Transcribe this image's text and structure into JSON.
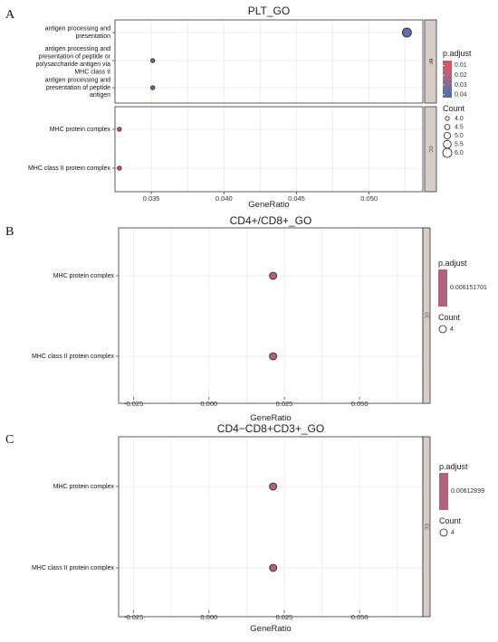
{
  "chart_data": [
    {
      "panel_letter": "A",
      "type": "scatter",
      "title": "PLT_GO",
      "xlabel": "GeneRatio",
      "xlim": [
        0.0325,
        0.0537
      ],
      "x_ticks": [
        0.035,
        0.04,
        0.045,
        0.05
      ],
      "x_tick_labels": [
        "0.035",
        "0.040",
        "0.045",
        "0.050"
      ],
      "grid": true,
      "legend_position": "right",
      "color_legend": {
        "title": "p.adjust",
        "min": 0.005,
        "max": 0.043,
        "ticks": [
          0.01,
          0.02,
          0.03,
          0.04
        ],
        "tick_labels": [
          "0.01",
          "0.02",
          "0.03",
          "0.04"
        ]
      },
      "size_legend": {
        "title": "Count",
        "values": [
          4.0,
          4.5,
          5.0,
          5.5,
          6.0
        ],
        "labels": [
          "4.0",
          "4.5",
          "5.0",
          "5.5",
          "6.0"
        ]
      },
      "facets": [
        {
          "strip": "BP",
          "categories": [
            [
              "antigen processing and",
              "presentation"
            ],
            [
              "antigen processing and",
              "presentation of peptide or",
              "polysaccharide antigen via",
              "MHC class II"
            ],
            [
              "antigen processing and",
              "presentation of peptide",
              "antigen"
            ]
          ],
          "points": [
            {
              "x": 0.0526,
              "count": 6,
              "p_adjust": 0.04
            },
            {
              "x": 0.0351,
              "count": 4,
              "p_adjust": 0.04
            },
            {
              "x": 0.0351,
              "count": 4,
              "p_adjust": 0.04
            }
          ]
        },
        {
          "strip": "CC",
          "categories": [
            [
              "MHC protein complex"
            ],
            [
              "MHC class II protein complex"
            ]
          ],
          "points": [
            {
              "x": 0.0328,
              "count": 4,
              "p_adjust": 0.008
            },
            {
              "x": 0.0328,
              "count": 4,
              "p_adjust": 0.008
            }
          ]
        }
      ]
    },
    {
      "panel_letter": "B",
      "type": "scatter",
      "title": "CD4+/CD8+_GO",
      "xlabel": "GeneRatio",
      "xlim": [
        -0.03,
        0.071
      ],
      "x_ticks": [
        -0.025,
        0.0,
        0.025,
        0.05
      ],
      "x_tick_labels": [
        "-0.025",
        "0.000",
        "0.025",
        "0.050"
      ],
      "grid": true,
      "legend_position": "right",
      "color_legend": {
        "title": "p.adjust",
        "label": "0.006151701",
        "color": "#b0647c"
      },
      "size_legend": {
        "title": "Count",
        "label": "4"
      },
      "facets": [
        {
          "strip": "CC",
          "categories": [
            [
              "MHC protein complex"
            ],
            [
              "MHC class II protein complex"
            ]
          ],
          "points": [
            {
              "x": 0.0213,
              "count": 4,
              "p_adjust": 0.006151701
            },
            {
              "x": 0.0213,
              "count": 4,
              "p_adjust": 0.006151701
            }
          ]
        }
      ]
    },
    {
      "panel_letter": "C",
      "type": "scatter",
      "title": "CD4−CD8+CD3+_GO",
      "xlabel": "GeneRatio",
      "xlim": [
        -0.03,
        0.071
      ],
      "x_ticks": [
        -0.025,
        0.0,
        0.025,
        0.05
      ],
      "x_tick_labels": [
        "-0.025",
        "0.000",
        "0.025",
        "0.050"
      ],
      "grid": true,
      "legend_position": "right",
      "color_legend": {
        "title": "p.adjust",
        "label": "0.00612899",
        "color": "#b0647c"
      },
      "size_legend": {
        "title": "Count",
        "label": "4"
      },
      "facets": [
        {
          "strip": "CC",
          "categories": [
            [
              "MHC protein complex"
            ],
            [
              "MHC class II protein complex"
            ]
          ],
          "points": [
            {
              "x": 0.0213,
              "count": 4,
              "p_adjust": 0.00612899
            },
            {
              "x": 0.0213,
              "count": 4,
              "p_adjust": 0.00612899
            }
          ]
        }
      ]
    }
  ],
  "colors": {
    "low_p": "#e2515d",
    "mid_p": "#9a6a8c",
    "high_p": "#4f71a8",
    "single_p": "#b0647c",
    "strip_fill": "#d7ccc8",
    "grid": "#e6e6e6"
  }
}
